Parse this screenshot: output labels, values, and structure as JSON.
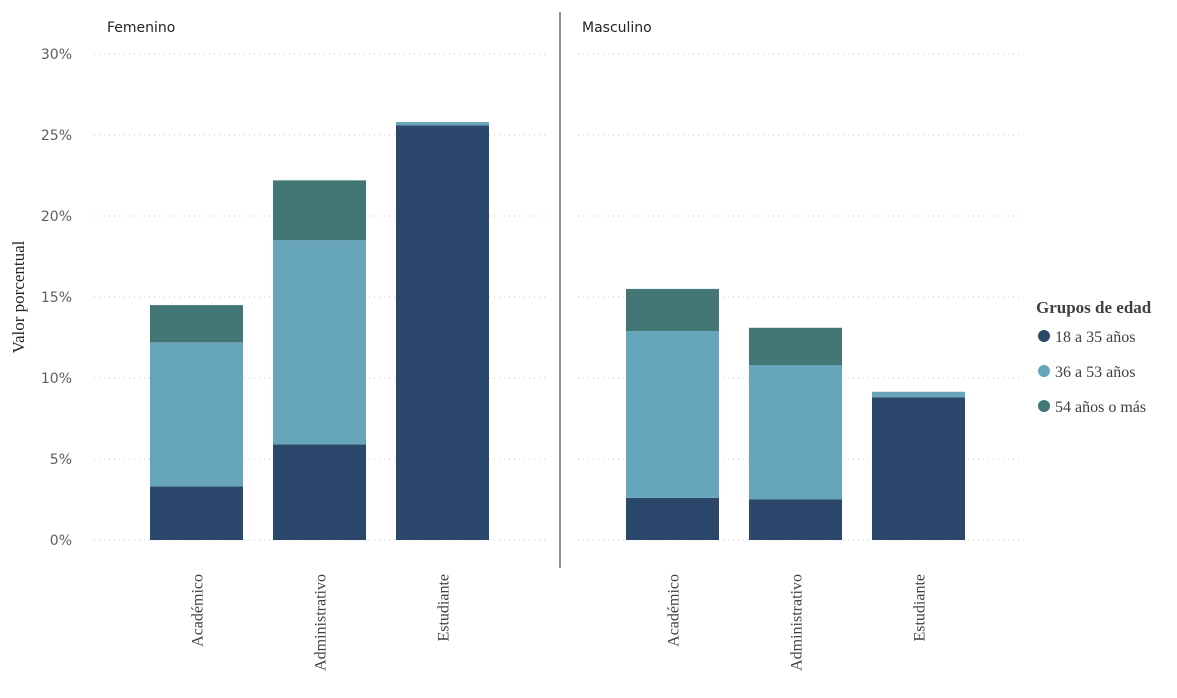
{
  "chart_data": {
    "type": "bar",
    "stacked": true,
    "ylabel": "Valor porcentual",
    "ylim": [
      0,
      30
    ],
    "yticks": [
      "0%",
      "5%",
      "10%",
      "15%",
      "20%",
      "25%",
      "30%"
    ],
    "categories": [
      "Académico",
      "Administrativo",
      "Estudiante"
    ],
    "grid": true,
    "legend": {
      "title": "Grupos de edad",
      "placement": "right",
      "items": [
        {
          "label": "18 a 35 años",
          "color": "#2b476b"
        },
        {
          "label": "36 a 53 años",
          "color": "#67a5ba"
        },
        {
          "label": "54 años o más",
          "color": "#437776"
        }
      ]
    },
    "panels": [
      {
        "title": "Femenino",
        "series": [
          {
            "name": "18 a 35 años",
            "values": [
              3.3,
              5.9,
              25.6
            ]
          },
          {
            "name": "36 a 53 años",
            "values": [
              8.9,
              12.6,
              0.2
            ]
          },
          {
            "name": "54 años o más",
            "values": [
              2.3,
              3.7,
              0.0
            ]
          }
        ]
      },
      {
        "title": "Masculino",
        "series": [
          {
            "name": "18 a 35 años",
            "values": [
              2.6,
              2.5,
              8.8
            ]
          },
          {
            "name": "36 a 53 años",
            "values": [
              10.3,
              8.3,
              0.35
            ]
          },
          {
            "name": "54 años o más",
            "values": [
              2.6,
              2.3,
              0.0
            ]
          }
        ]
      }
    ]
  }
}
